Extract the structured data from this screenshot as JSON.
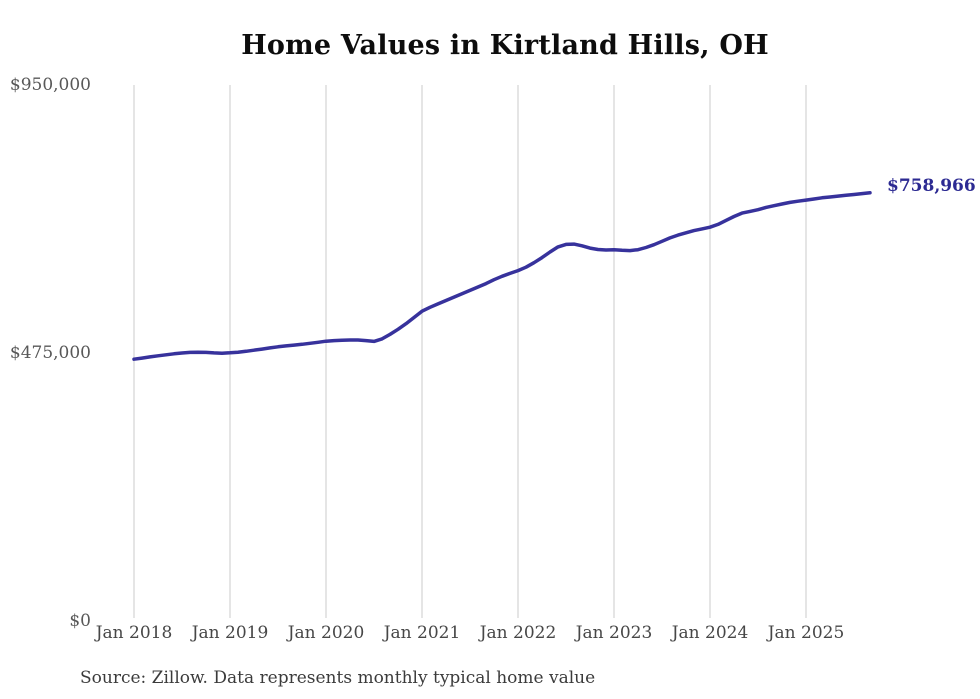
{
  "title": "Home Values in Kirtland Hills, OH",
  "source_note": "Source: Zillow. Data represents monthly typical home value",
  "end_label": "$758,966",
  "colors": {
    "line": "#37329c",
    "end_label": "#2c2a92",
    "grid": "#cbcbcb",
    "x_axis_text": "#474747",
    "y_axis_text": "#585858",
    "title_text": "#0d0d0d",
    "source_text": "#3b3b3b",
    "background": "#ffffff"
  },
  "chart_data": {
    "type": "line",
    "title": "Home Values in Kirtland Hills, OH",
    "xlabel": "",
    "ylabel": "",
    "ylim": [
      0,
      950000
    ],
    "grid": "vertical-only",
    "legend": "none",
    "x_tick_labels": [
      "Jan 2018",
      "Jan 2019",
      "Jan 2020",
      "Jan 2021",
      "Jan 2022",
      "Jan 2023",
      "Jan 2024",
      "Jan 2025"
    ],
    "y_ticks": [
      {
        "label": "$950,000",
        "value": 950000
      },
      {
        "label": "$475,000",
        "value": 475000
      },
      {
        "label": "$0",
        "value": 0
      }
    ],
    "start_month": "2018-01",
    "end_month": "2025-09",
    "final_value": 758966,
    "final_value_label": "$758,966",
    "series": [
      {
        "name": "Monthly typical home value",
        "monthly_values": [
          464000,
          466000,
          468000,
          470000,
          471800,
          473500,
          475000,
          476000,
          476500,
          476000,
          475200,
          474600,
          475300,
          476500,
          478000,
          480000,
          482000,
          484000,
          486000,
          487500,
          489000,
          490500,
          492200,
          494000,
          496000,
          497000,
          497600,
          498000,
          498000,
          497000,
          495500,
          500000,
          508000,
          517000,
          527000,
          538000,
          549000,
          556000,
          562000,
          568000,
          574000,
          580000,
          586000,
          592000,
          598000,
          605000,
          611000,
          616000,
          621000,
          627000,
          635000,
          644000,
          654000,
          663000,
          667500,
          668000,
          665000,
          661000,
          658500,
          657500,
          658000,
          657000,
          656500,
          658000,
          662000,
          667000,
          673000,
          679000,
          684000,
          688000,
          692000,
          695000,
          698000,
          703000,
          710000,
          717000,
          723000,
          726000,
          729000,
          733000,
          736000,
          739000,
          742000,
          744000,
          746000,
          748000,
          750000,
          751500,
          753000,
          754500,
          756000,
          757500,
          758966
        ]
      }
    ]
  }
}
